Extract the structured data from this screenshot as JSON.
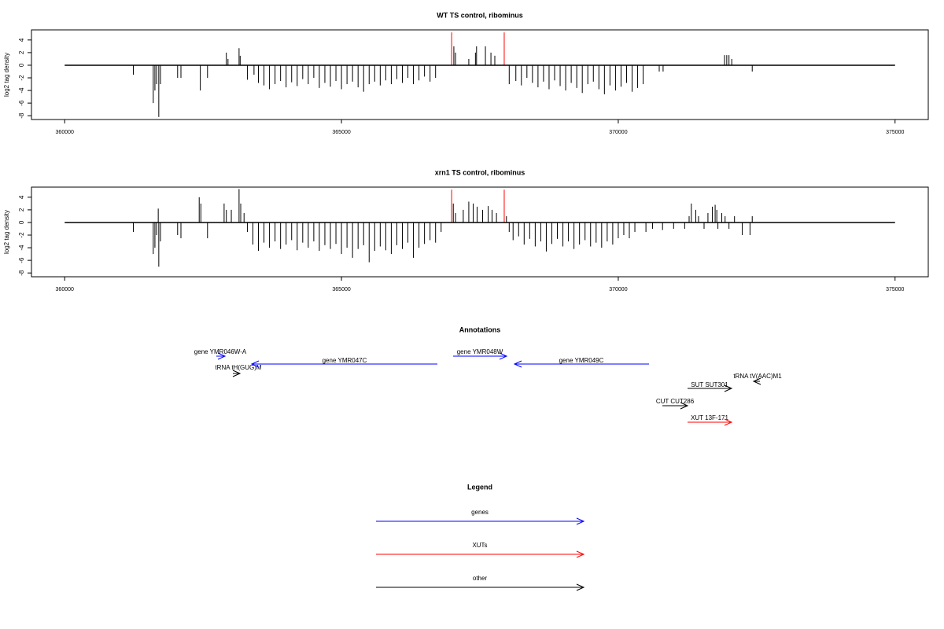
{
  "chart_data": [
    {
      "type": "bar",
      "title": "WT TS control, ribominus",
      "y_label": "log2 tag density",
      "xlim": [
        359400,
        375600
      ],
      "xticks": [
        360000,
        365000,
        370000,
        375000
      ],
      "ylim": [
        -8.6,
        5.6
      ],
      "yticks": [
        -8,
        -6,
        -4,
        -2,
        0,
        2,
        4
      ],
      "series": [
        {
          "color": "#000000",
          "x": [
            361240,
            361600,
            361630,
            361660,
            361700,
            361730,
            362040,
            362100,
            362450,
            362580,
            362920,
            362950,
            363150,
            363170,
            363300,
            363420,
            363500,
            363600,
            363700,
            363800,
            363900,
            364000,
            364100,
            364200,
            364300,
            364400,
            364500,
            364600,
            364700,
            364800,
            364900,
            365000,
            365100,
            365200,
            365300,
            365400,
            365500,
            365600,
            365700,
            365800,
            365900,
            366000,
            366100,
            366200,
            366300,
            366400,
            366500,
            366600,
            366700,
            367030,
            367060,
            367300,
            367420,
            367440,
            367600,
            367700,
            367770,
            368030,
            368150,
            368250,
            368350,
            368450,
            368550,
            368650,
            368750,
            368850,
            368950,
            369050,
            369150,
            369250,
            369350,
            369450,
            369550,
            369650,
            369750,
            369850,
            369950,
            370050,
            370150,
            370250,
            370350,
            370450,
            370740,
            370810,
            371920,
            371960,
            372000,
            372050,
            372420
          ],
          "values": [
            -1.5,
            -6,
            -4,
            -3,
            -8.2,
            -3,
            -2,
            -2,
            -4,
            -2,
            2,
            1,
            2.7,
            1.5,
            -2.3,
            -1.5,
            -2.8,
            -3.2,
            -3.8,
            -3,
            -2.5,
            -3.5,
            -2.7,
            -3.3,
            -2.2,
            -3,
            -2,
            -3.6,
            -2.8,
            -3.4,
            -2.5,
            -3.8,
            -3,
            -2.6,
            -3.5,
            -4.2,
            -3,
            -2.6,
            -3.2,
            -2.4,
            -3,
            -2.2,
            -2.8,
            -2,
            -3,
            -2.4,
            -1.8,
            -2.6,
            -2,
            3,
            2,
            1,
            2,
            3,
            3,
            2,
            1.5,
            -3,
            -2.5,
            -3.2,
            -2,
            -2.8,
            -3.5,
            -2.6,
            -3.8,
            -2.4,
            -3.3,
            -4,
            -2.8,
            -3.6,
            -4.4,
            -3,
            -2.6,
            -3.8,
            -4.6,
            -3.2,
            -4,
            -3.4,
            -2.8,
            -4.2,
            -3.6,
            -3,
            -1,
            -1,
            1.6,
            1.6,
            1.6,
            1,
            -1
          ]
        },
        {
          "color": "#ff0000",
          "x": [
            366990,
            367940
          ],
          "values": [
            5.2,
            5.2
          ]
        }
      ]
    },
    {
      "type": "bar",
      "title": "xrn1 TS control, ribominus",
      "y_label": "log2 tag density",
      "xlim": [
        359400,
        375600
      ],
      "xticks": [
        360000,
        365000,
        370000,
        375000
      ],
      "ylim": [
        -8.6,
        5.6
      ],
      "yticks": [
        -8,
        -6,
        -4,
        -2,
        0,
        2,
        4
      ],
      "series": [
        {
          "color": "#000000",
          "x": [
            361240,
            361600,
            361630,
            361660,
            361690,
            361700,
            361730,
            362040,
            362100,
            362430,
            362460,
            362580,
            362880,
            362920,
            363010,
            363150,
            363180,
            363240,
            363300,
            363400,
            363500,
            363600,
            363700,
            363800,
            363900,
            364000,
            364100,
            364200,
            364300,
            364400,
            364500,
            364600,
            364700,
            364800,
            364900,
            365000,
            365100,
            365200,
            365300,
            365400,
            365500,
            365600,
            365700,
            365800,
            365900,
            366000,
            366100,
            366200,
            366300,
            366400,
            366500,
            366600,
            366700,
            366800,
            367020,
            367060,
            367200,
            367300,
            367380,
            367450,
            367550,
            367650,
            367720,
            367800,
            367980,
            368030,
            368100,
            368200,
            368300,
            368400,
            368500,
            368600,
            368700,
            368800,
            368900,
            369000,
            369100,
            369200,
            369300,
            369400,
            369500,
            369600,
            369700,
            369800,
            369900,
            370000,
            370100,
            370200,
            370300,
            370500,
            370620,
            370800,
            371000,
            371200,
            371280,
            371320,
            371400,
            371450,
            371550,
            371620,
            371700,
            371750,
            371780,
            371800,
            371870,
            371930,
            372000,
            372100,
            372240,
            372380,
            372420
          ],
          "values": [
            -1.5,
            -5,
            -4,
            -2,
            2.2,
            -7,
            -3,
            -2,
            -2.5,
            4,
            3,
            -2.5,
            3,
            2,
            2,
            5.3,
            3,
            1.5,
            -1.5,
            -3.5,
            -4.5,
            -3.2,
            -4,
            -3,
            -4.2,
            -3.5,
            -2.8,
            -4.4,
            -3.2,
            -4,
            -3,
            -4.5,
            -3.6,
            -4.2,
            -3.4,
            -5,
            -4,
            -5.6,
            -4.2,
            -3.6,
            -6.3,
            -4.5,
            -3.8,
            -4.4,
            -5,
            -3.6,
            -4.2,
            -3.2,
            -5.6,
            -4,
            -3.4,
            -2.8,
            -3.2,
            -1.5,
            3,
            1.5,
            2,
            3.3,
            3,
            2.5,
            2,
            2.6,
            2,
            1.5,
            1,
            -1.5,
            -2.8,
            -2.2,
            -3.5,
            -2.6,
            -3.8,
            -3,
            -4.6,
            -3.4,
            -2.6,
            -3.8,
            -3,
            -4.2,
            -3.5,
            -2.8,
            -3.8,
            -3.2,
            -4,
            -3,
            -3.5,
            -2.5,
            -2,
            -2.5,
            -1.5,
            -1.5,
            -1,
            -1.2,
            -1,
            -1,
            1,
            3,
            2,
            1,
            -1,
            1.5,
            2.5,
            2.8,
            2,
            -1,
            1.5,
            1,
            -1,
            1,
            -2,
            -2,
            1
          ]
        },
        {
          "color": "#ff0000",
          "x": [
            366990,
            367940
          ],
          "values": [
            5.2,
            5.2
          ]
        }
      ]
    }
  ],
  "annotations": {
    "title": "Annotations",
    "items": [
      {
        "label": "gene YMR046W-A",
        "color": "#0000ff"
      },
      {
        "label": "tRNA tH(GUG)M",
        "color": "#000000"
      },
      {
        "label": "gene YMR047C",
        "color": "#0000ff"
      },
      {
        "label": "gene YMR048W",
        "color": "#0000ff"
      },
      {
        "label": "gene YMR049C",
        "color": "#0000ff"
      },
      {
        "label": "tRNA tV(AAC)M1",
        "color": "#000000"
      },
      {
        "label": "SUT SUT301",
        "color": "#000000"
      },
      {
        "label": "CUT CUT286",
        "color": "#000000"
      },
      {
        "label": "XUT 13F-171",
        "color": "#ff0000"
      }
    ]
  },
  "legend": {
    "title": "Legend",
    "items": [
      {
        "label": "genes",
        "color": "#0000ff"
      },
      {
        "label": "XUTs",
        "color": "#ff0000"
      },
      {
        "label": "other",
        "color": "#000000"
      }
    ]
  }
}
